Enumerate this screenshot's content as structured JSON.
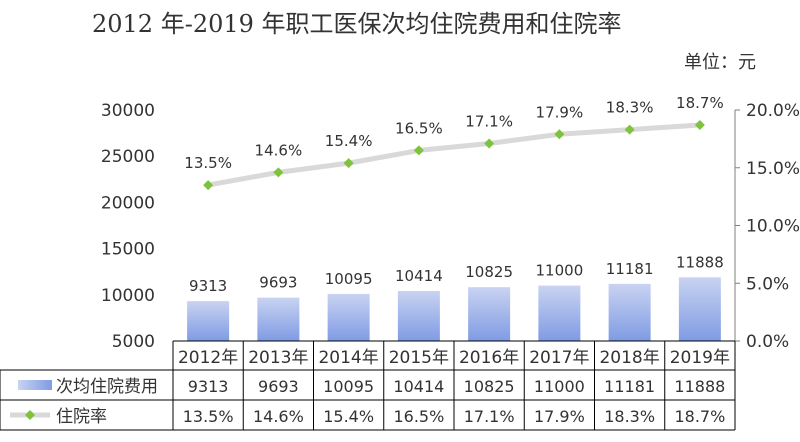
{
  "title": "2012 年-2019 年职工医保次均住院费用和住院率",
  "unit_label": "单位：元",
  "colors": {
    "bar_top": "#c9d3f2",
    "bar_bottom": "#7f9be3",
    "line": "#d9d9d9",
    "marker": "#7ec33b",
    "grid": "#000000"
  },
  "chart_data": {
    "type": "bar",
    "categories": [
      "2012年",
      "2013年",
      "2014年",
      "2015年",
      "2016年",
      "2017年",
      "2018年",
      "2019年"
    ],
    "ylim": [
      5000,
      30000
    ],
    "y_ticks": [
      "5000",
      "10000",
      "15000",
      "20000",
      "25000",
      "30000"
    ],
    "y2lim": [
      0,
      20
    ],
    "y2_ticks": [
      "0.0%",
      "5.0%",
      "10.0%",
      "15.0%",
      "20.0%"
    ],
    "series": [
      {
        "name": "次均住院费用",
        "type": "bar",
        "axis": "left",
        "values": [
          9313,
          9693,
          10095,
          10414,
          10825,
          11000,
          11181,
          11888
        ],
        "labels": [
          "9313",
          "9693",
          "10095",
          "10414",
          "10825",
          "11000",
          "11181",
          "11888"
        ]
      },
      {
        "name": "住院率",
        "type": "line",
        "axis": "right",
        "values": [
          13.5,
          14.6,
          15.4,
          16.5,
          17.1,
          17.9,
          18.3,
          18.7
        ],
        "labels": [
          "13.5%",
          "14.6%",
          "15.4%",
          "16.5%",
          "17.1%",
          "17.9%",
          "18.3%",
          "18.7%"
        ]
      }
    ]
  }
}
